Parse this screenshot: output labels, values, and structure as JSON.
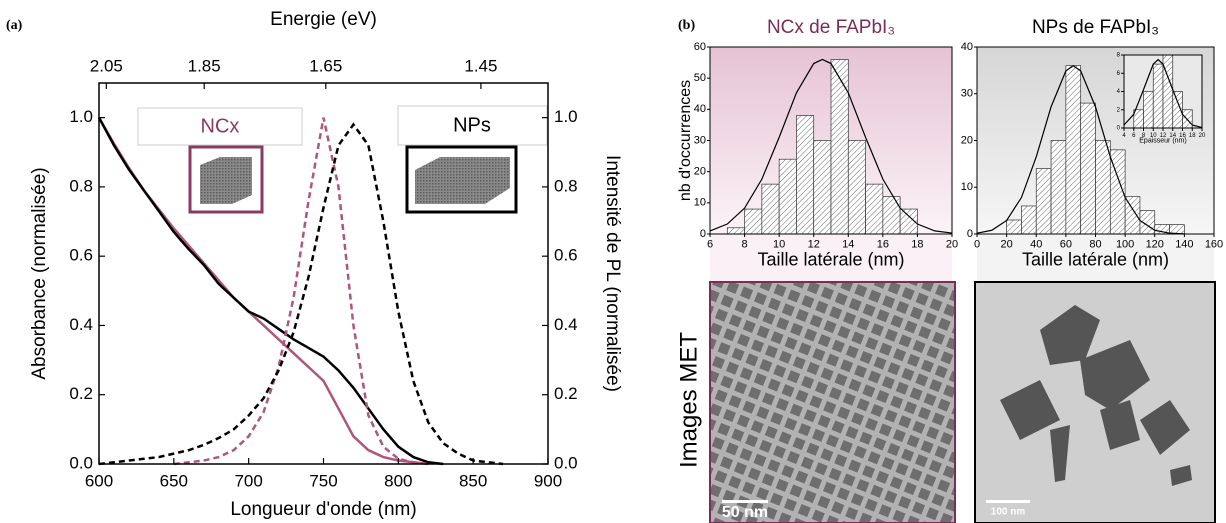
{
  "labels": {
    "a": "(a)",
    "b": "(b)",
    "tem": "Images MET",
    "scale_ncx": "50 nm",
    "scale_nps": "100 nm"
  },
  "chart_data": [
    {
      "type": "line",
      "xlabel": "Longueur d'onde (nm)",
      "ylabel": "Absorbance (normalisée)",
      "y2label": "Intensité de PL (normalisée)",
      "x2label": "Energie (eV)",
      "x": [
        600,
        610,
        620,
        630,
        640,
        650,
        660,
        670,
        680,
        690,
        700,
        710,
        720,
        730,
        740,
        750,
        760,
        770,
        780,
        790,
        800,
        810,
        820,
        830,
        840,
        850,
        860,
        870,
        880,
        890,
        900
      ],
      "series": [
        {
          "color": "#b0557e",
          "linestyle": "solid",
          "values": [
            1.0,
            0.925,
            0.855,
            0.79,
            0.735,
            0.68,
            0.63,
            0.58,
            0.53,
            0.48,
            0.44,
            0.4,
            0.36,
            0.32,
            0.28,
            0.24,
            0.16,
            0.08,
            0.04,
            0.02,
            0.01,
            0.005,
            0,
            null,
            null,
            null,
            null,
            null,
            null,
            null,
            null
          ]
        },
        {
          "color": "#000000",
          "linestyle": "solid",
          "values": [
            1.0,
            0.92,
            0.85,
            0.79,
            0.73,
            0.67,
            0.62,
            0.575,
            0.52,
            0.48,
            0.44,
            0.42,
            0.39,
            0.36,
            0.335,
            0.31,
            0.27,
            0.22,
            0.16,
            0.1,
            0.05,
            0.02,
            0.005,
            0,
            null,
            null,
            null,
            null,
            null,
            null,
            null
          ]
        },
        {
          "color": "#b0557e",
          "linestyle": "dashed",
          "axis": "y2",
          "values": [
            null,
            null,
            null,
            null,
            null,
            0,
            0.005,
            0.01,
            0.02,
            0.04,
            0.08,
            0.15,
            0.28,
            0.48,
            0.76,
            1.0,
            0.8,
            0.4,
            0.14,
            0.05,
            0.015,
            0.005,
            0,
            null,
            null,
            null,
            null,
            null,
            null,
            null,
            null
          ]
        },
        {
          "color": "#000000",
          "linestyle": "dashed",
          "axis": "y2",
          "values": [
            0,
            0.005,
            0.01,
            0.015,
            0.02,
            0.03,
            0.04,
            0.055,
            0.075,
            0.1,
            0.14,
            0.19,
            0.27,
            0.38,
            0.54,
            0.74,
            0.92,
            0.98,
            0.92,
            0.7,
            0.44,
            0.24,
            0.12,
            0.06,
            0.03,
            0.01,
            0.005,
            0,
            null,
            null,
            null
          ]
        }
      ],
      "xlim": [
        600,
        900
      ],
      "xticks": [
        600,
        650,
        700,
        750,
        800,
        850,
        900
      ],
      "ylim": [
        0,
        1.1
      ],
      "yticks": [
        {
          "value": 0,
          "label": "0.0"
        },
        0.2,
        0.4,
        0.6,
        0.8,
        {
          "value": 1,
          "label": "1.0"
        }
      ],
      "y2lim": [
        0,
        1.1
      ],
      "y2ticks": [
        {
          "value": 0,
          "label": "0.0"
        },
        0.2,
        0.4,
        0.6,
        0.8,
        {
          "value": 1,
          "label": "1.0"
        }
      ],
      "x2lim": [
        2.0667,
        1.3778
      ],
      "x2scale": "reciprocal",
      "x2ticks": [
        2.05,
        1.85,
        1.65,
        1.45
      ],
      "annotations": [
        {
          "text": "NCx",
          "color": "#8b3a62"
        },
        {
          "text": "NPs",
          "color": "#000000"
        }
      ]
    },
    {
      "type": "histogram",
      "title": "NCx de FAPbI₃",
      "title_color": "#7b2d55",
      "xlabel": "Taille latérale (nm)",
      "ylabel": "nb d'occurrences",
      "bins": [
        7,
        8,
        9,
        10,
        11,
        12,
        13,
        14,
        15,
        16,
        17,
        18
      ],
      "values": [
        2,
        8,
        16,
        24,
        38,
        30,
        56,
        30,
        16,
        12,
        8
      ],
      "fit_x": [
        6,
        7,
        8,
        9,
        10,
        11,
        12,
        12.5,
        13,
        14,
        15,
        16,
        17,
        18,
        19,
        20
      ],
      "fit_values": [
        1.0,
        3.2,
        8.3,
        17.6,
        31.0,
        45.3,
        54.7,
        56,
        54.7,
        45.3,
        31.0,
        17.6,
        8.3,
        3.2,
        1.0,
        0.3
      ],
      "xlim": [
        6,
        20
      ],
      "xticks": [
        6,
        8,
        10,
        12,
        14,
        16,
        18,
        20
      ],
      "ylim": [
        0,
        60
      ],
      "yticks": [
        0,
        10,
        20,
        30,
        40,
        50,
        60
      ]
    },
    {
      "type": "histogram",
      "title": "NPs de FAPbI₃",
      "title_color": "#000000",
      "xlabel": "Taille latérale (nm)",
      "bins": [
        20,
        30,
        40,
        50,
        60,
        70,
        80,
        90,
        100,
        110,
        120,
        130,
        140
      ],
      "values": [
        3,
        6,
        14,
        20,
        36,
        28,
        20,
        18,
        8,
        5,
        2,
        2
      ],
      "fit_x": [
        0,
        10,
        20,
        30,
        40,
        50,
        60,
        65,
        70,
        80,
        90,
        100,
        110,
        120,
        130,
        140
      ],
      "fit_values": [
        0.18,
        0.8,
        2.9,
        7.8,
        16.5,
        27.2,
        34.9,
        36,
        34.9,
        27.2,
        16.5,
        7.8,
        2.9,
        0.8,
        0.18,
        0.03
      ],
      "xlim": [
        0,
        160
      ],
      "xticks": [
        0,
        20,
        40,
        60,
        80,
        100,
        120,
        140,
        160
      ],
      "ylim": [
        0,
        40
      ],
      "yticks": [
        0,
        10,
        20,
        30,
        40
      ]
    },
    {
      "type": "histogram",
      "xlabel": "Epaisseur (nm)",
      "bins": [
        6,
        8,
        10,
        12,
        14,
        16,
        18
      ],
      "values": [
        2,
        4,
        7,
        8,
        4,
        2
      ],
      "fit_x": [
        4,
        6,
        8,
        10,
        11,
        12,
        14,
        16,
        18,
        20
      ],
      "fit_values": [
        0.33,
        1.5,
        4.2,
        7.0,
        7.5,
        7.0,
        4.2,
        1.5,
        0.33,
        0.04
      ],
      "xlim": [
        4,
        20
      ],
      "xticks": [
        4,
        6,
        8,
        10,
        12,
        14,
        16,
        18,
        20
      ],
      "ylim": [
        0,
        8
      ],
      "yticks": [
        0,
        2,
        4,
        6,
        8
      ]
    }
  ]
}
